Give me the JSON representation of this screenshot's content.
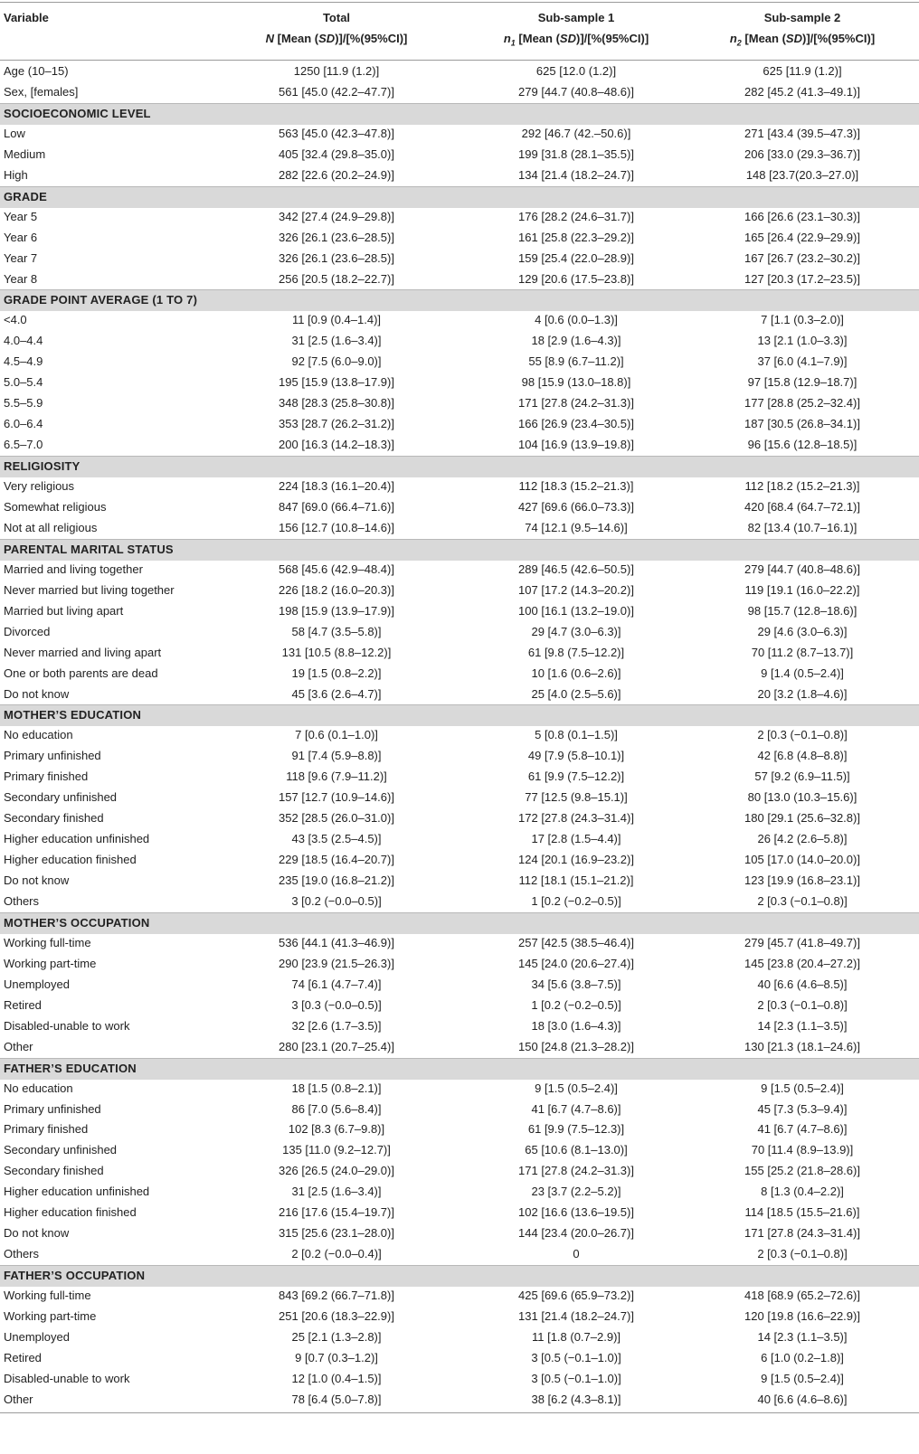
{
  "header": {
    "variable": "Variable",
    "total_title": "Total",
    "total_sub": "N [Mean (SD)]/[%(95%CI)]",
    "s1_title": "Sub-sample 1",
    "s1_sub": "n1 [Mean (SD)]/[%(95%CI)]",
    "s2_title": "Sub-sample 2",
    "s2_sub": "n2 [Mean (SD)]/[%(95%CI)]"
  },
  "rows": [
    {
      "label": "Age (10–15)",
      "total": "1250 [11.9 (1.2)]",
      "s1": "625 [12.0 (1.2)]",
      "s2": "625 [11.9 (1.2)]"
    },
    {
      "label": "Sex, [females]",
      "total": "561 [45.0 (42.2–47.7)]",
      "s1": "279 [44.7 (40.8–48.6)]",
      "s2": "282 [45.2 (41.3–49.1)]"
    },
    {
      "section": "SOCIOECONOMIC LEVEL"
    },
    {
      "label": "Low",
      "total": "563 [45.0 (42.3–47.8)]",
      "s1": "292 [46.7 (42.–50.6)]",
      "s2": "271 [43.4 (39.5–47.3)]"
    },
    {
      "label": "Medium",
      "total": "405 [32.4 (29.8–35.0)]",
      "s1": "199 [31.8 (28.1–35.5)]",
      "s2": "206 [33.0 (29.3–36.7)]"
    },
    {
      "label": "High",
      "total": "282 [22.6 (20.2–24.9)]",
      "s1": "134 [21.4 (18.2–24.7)]",
      "s2": "148 [23.7(20.3–27.0)]"
    },
    {
      "section": "GRADE"
    },
    {
      "label": "Year 5",
      "total": "342 [27.4 (24.9–29.8)]",
      "s1": "176 [28.2 (24.6–31.7)]",
      "s2": "166 [26.6 (23.1–30.3)]"
    },
    {
      "label": "Year 6",
      "total": "326 [26.1 (23.6–28.5)]",
      "s1": "161 [25.8 (22.3–29.2)]",
      "s2": "165 [26.4 (22.9–29.9)]"
    },
    {
      "label": "Year 7",
      "total": "326 [26.1 (23.6–28.5)]",
      "s1": "159 [25.4 (22.0–28.9)]",
      "s2": "167 [26.7 (23.2–30.2)]"
    },
    {
      "label": "Year 8",
      "total": "256 [20.5 (18.2–22.7)]",
      "s1": "129 [20.6 (17.5–23.8)]",
      "s2": "127 [20.3 (17.2–23.5)]"
    },
    {
      "section": "GRADE POINT AVERAGE (1 TO 7)"
    },
    {
      "label": "<4.0",
      "total": "11 [0.9 (0.4–1.4)]",
      "s1": "4 [0.6 (0.0–1.3)]",
      "s2": "7 [1.1 (0.3–2.0)]"
    },
    {
      "label": "4.0–4.4",
      "total": "31 [2.5 (1.6–3.4)]",
      "s1": "18 [2.9 (1.6–4.3)]",
      "s2": "13 [2.1 (1.0–3.3)]"
    },
    {
      "label": "4.5–4.9",
      "total": "92 [7.5 (6.0–9.0)]",
      "s1": "55 [8.9 (6.7–11.2)]",
      "s2": "37 [6.0 (4.1–7.9)]"
    },
    {
      "label": "5.0–5.4",
      "total": "195 [15.9 (13.8–17.9)]",
      "s1": "98 [15.9 (13.0–18.8)]",
      "s2": "97 [15.8 (12.9–18.7)]"
    },
    {
      "label": "5.5–5.9",
      "total": "348 [28.3 (25.8–30.8)]",
      "s1": "171 [27.8 (24.2–31.3)]",
      "s2": "177 [28.8 (25.2–32.4)]"
    },
    {
      "label": "6.0–6.4",
      "total": "353 [28.7 (26.2–31.2)]",
      "s1": "166 [26.9 (23.4–30.5)]",
      "s2": "187 [30.5 (26.8–34.1)]"
    },
    {
      "label": "6.5–7.0",
      "total": "200 [16.3 (14.2–18.3)]",
      "s1": "104 [16.9 (13.9–19.8)]",
      "s2": "96 [15.6 (12.8–18.5)]"
    },
    {
      "section": "RELIGIOSITY"
    },
    {
      "label": "Very religious",
      "total": "224 [18.3 (16.1–20.4)]",
      "s1": "112 [18.3 (15.2–21.3)]",
      "s2": "112 [18.2 (15.2–21.3)]"
    },
    {
      "label": "Somewhat religious",
      "total": "847 [69.0 (66.4–71.6)]",
      "s1": "427 [69.6 (66.0–73.3)]",
      "s2": "420 [68.4 (64.7–72.1)]"
    },
    {
      "label": "Not at all religious",
      "total": "156 [12.7 (10.8–14.6)]",
      "s1": "74 [12.1 (9.5–14.6)]",
      "s2": "82 [13.4 (10.7–16.1)]"
    },
    {
      "section": "PARENTAL MARITAL STATUS"
    },
    {
      "label": "Married and living together",
      "total": "568 [45.6 (42.9–48.4)]",
      "s1": "289 [46.5 (42.6–50.5)]",
      "s2": "279 [44.7 (40.8–48.6)]"
    },
    {
      "label": "Never married but living together",
      "total": "226 [18.2 (16.0–20.3)]",
      "s1": "107 [17.2 (14.3–20.2)]",
      "s2": "119 [19.1 (16.0–22.2)]"
    },
    {
      "label": "Married but living apart",
      "total": "198 [15.9 (13.9–17.9)]",
      "s1": "100 [16.1 (13.2–19.0)]",
      "s2": "98 [15.7 (12.8–18.6)]"
    },
    {
      "label": "Divorced",
      "total": "58 [4.7 (3.5–5.8)]",
      "s1": "29 [4.7 (3.0–6.3)]",
      "s2": "29 [4.6 (3.0–6.3)]"
    },
    {
      "label": "Never married and living apart",
      "total": "131 [10.5 (8.8–12.2)]",
      "s1": "61 [9.8 (7.5–12.2)]",
      "s2": "70 [11.2 (8.7–13.7)]"
    },
    {
      "label": "One or both parents are dead",
      "total": "19 [1.5 (0.8–2.2)]",
      "s1": "10 [1.6 (0.6–2.6)]",
      "s2": "9 [1.4 (0.5–2.4)]"
    },
    {
      "label": "Do not know",
      "total": "45 [3.6 (2.6–4.7)]",
      "s1": "25 [4.0 (2.5–5.6)]",
      "s2": "20 [3.2 (1.8–4.6)]"
    },
    {
      "section": "MOTHER’S EDUCATION"
    },
    {
      "label": "No education",
      "total": "7 [0.6 (0.1–1.0)]",
      "s1": "5 [0.8 (0.1–1.5)]",
      "s2": "2 [0.3 (−0.1–0.8)]"
    },
    {
      "label": "Primary unfinished",
      "total": "91 [7.4 (5.9–8.8)]",
      "s1": "49 [7.9 (5.8–10.1)]",
      "s2": "42 [6.8 (4.8–8.8)]"
    },
    {
      "label": "Primary finished",
      "total": "118 [9.6 (7.9–11.2)]",
      "s1": "61 [9.9 (7.5–12.2)]",
      "s2": "57 [9.2 (6.9–11.5)]"
    },
    {
      "label": "Secondary unfinished",
      "total": "157 [12.7 (10.9–14.6)]",
      "s1": "77 [12.5 (9.8–15.1)]",
      "s2": "80 [13.0 (10.3–15.6)]"
    },
    {
      "label": "Secondary finished",
      "total": "352 [28.5 (26.0–31.0)]",
      "s1": "172 [27.8 (24.3–31.4)]",
      "s2": "180 [29.1 (25.6–32.8)]"
    },
    {
      "label": "Higher education unfinished",
      "total": "43 [3.5 (2.5–4.5)]",
      "s1": "17 [2.8 (1.5–4.4)]",
      "s2": "26 [4.2 (2.6–5.8)]"
    },
    {
      "label": "Higher education finished",
      "total": "229 [18.5 (16.4–20.7)]",
      "s1": "124 [20.1 (16.9–23.2)]",
      "s2": "105 [17.0 (14.0–20.0)]"
    },
    {
      "label": "Do not know",
      "total": "235 [19.0 (16.8–21.2)]",
      "s1": "112 [18.1 (15.1–21.2)]",
      "s2": "123 [19.9 (16.8–23.1)]"
    },
    {
      "label": "Others",
      "total": "3 [0.2 (−0.0–0.5)]",
      "s1": "1 [0.2 (−0.2–0.5)]",
      "s2": "2 [0.3 (−0.1–0.8)]"
    },
    {
      "section": "MOTHER’S OCCUPATION"
    },
    {
      "label": "Working full-time",
      "total": "536 [44.1 (41.3–46.9)]",
      "s1": "257 [42.5 (38.5–46.4)]",
      "s2": "279 [45.7 (41.8–49.7)]"
    },
    {
      "label": "Working part-time",
      "total": "290 [23.9 (21.5–26.3)]",
      "s1": "145 [24.0 (20.6–27.4)]",
      "s2": "145 [23.8 (20.4–27.2)]"
    },
    {
      "label": "Unemployed",
      "total": "74 [6.1 (4.7–7.4)]",
      "s1": "34 [5.6 (3.8–7.5)]",
      "s2": "40 [6.6 (4.6–8.5)]"
    },
    {
      "label": "Retired",
      "total": "3 [0.3 (−0.0–0.5)]",
      "s1": "1 [0.2 (−0.2–0.5)]",
      "s2": "2 [0.3 (−0.1–0.8)]"
    },
    {
      "label": "Disabled-unable to work",
      "total": "32 [2.6 (1.7–3.5)]",
      "s1": "18 [3.0 (1.6–4.3)]",
      "s2": "14 [2.3 (1.1–3.5)]"
    },
    {
      "label": "Other",
      "total": "280 [23.1 (20.7–25.4)]",
      "s1": "150 [24.8 (21.3–28.2)]",
      "s2": "130 [21.3 (18.1–24.6)]"
    },
    {
      "section": "FATHER’S EDUCATION"
    },
    {
      "label": "No education",
      "total": "18 [1.5 (0.8–2.1)]",
      "s1": "9 [1.5 (0.5–2.4)]",
      "s2": "9 [1.5 (0.5–2.4)]"
    },
    {
      "label": "Primary unfinished",
      "total": "86 [7.0 (5.6–8.4)]",
      "s1": "41 [6.7 (4.7–8.6)]",
      "s2": "45 [7.3 (5.3–9.4)]"
    },
    {
      "label": "Primary finished",
      "total": "102 [8.3 (6.7–9.8)]",
      "s1": "61 [9.9 (7.5–12.3)]",
      "s2": "41 [6.7 (4.7–8.6)]"
    },
    {
      "label": "Secondary unfinished",
      "total": "135 [11.0 (9.2–12.7)]",
      "s1": "65 [10.6 (8.1–13.0)]",
      "s2": "70 [11.4 (8.9–13.9)]"
    },
    {
      "label": "Secondary finished",
      "total": "326 [26.5 (24.0–29.0)]",
      "s1": "171 [27.8 (24.2–31.3)]",
      "s2": "155 [25.2 (21.8–28.6)]"
    },
    {
      "label": "Higher education unfinished",
      "total": "31 [2.5 (1.6–3.4)]",
      "s1": "23 [3.7 (2.2–5.2)]",
      "s2": "8 [1.3 (0.4–2.2)]"
    },
    {
      "label": "Higher education finished",
      "total": "216 [17.6 (15.4–19.7)]",
      "s1": "102 [16.6 (13.6–19.5)]",
      "s2": "114 [18.5 (15.5–21.6)]"
    },
    {
      "label": "Do not know",
      "total": "315 [25.6 (23.1–28.0)]",
      "s1": "144 [23.4 (20.0–26.7)]",
      "s2": "171 [27.8 (24.3–31.4)]"
    },
    {
      "label": "Others",
      "total": "2 [0.2 (−0.0–0.4)]",
      "s1": "0",
      "s2": "2 [0.3 (−0.1–0.8)]"
    },
    {
      "section": "FATHER’S OCCUPATION"
    },
    {
      "label": "Working full-time",
      "total": "843 [69.2 (66.7–71.8)]",
      "s1": "425 [69.6 (65.9–73.2)]",
      "s2": "418 [68.9 (65.2–72.6)]"
    },
    {
      "label": "Working part-time",
      "total": "251 [20.6 (18.3–22.9)]",
      "s1": "131 [21.4 (18.2–24.7)]",
      "s2": "120 [19.8 (16.6–22.9)]"
    },
    {
      "label": "Unemployed",
      "total": "25 [2.1 (1.3–2.8)]",
      "s1": "11 [1.8 (0.7–2.9)]",
      "s2": "14 [2.3 (1.1–3.5)]"
    },
    {
      "label": "Retired",
      "total": "9 [0.7 (0.3–1.2)]",
      "s1": "3 [0.5 (−0.1–1.0)]",
      "s2": "6 [1.0 (0.2–1.8)]"
    },
    {
      "label": "Disabled-unable to work",
      "total": "12 [1.0 (0.4–1.5)]",
      "s1": "3 [0.5 (−0.1–1.0)]",
      "s2": "9 [1.5 (0.5–2.4)]"
    },
    {
      "label": "Other",
      "total": "78 [6.4 (5.0–7.8)]",
      "s1": "38 [6.2 (4.3–8.1)]",
      "s2": "40 [6.6 (4.6–8.6)]"
    }
  ]
}
